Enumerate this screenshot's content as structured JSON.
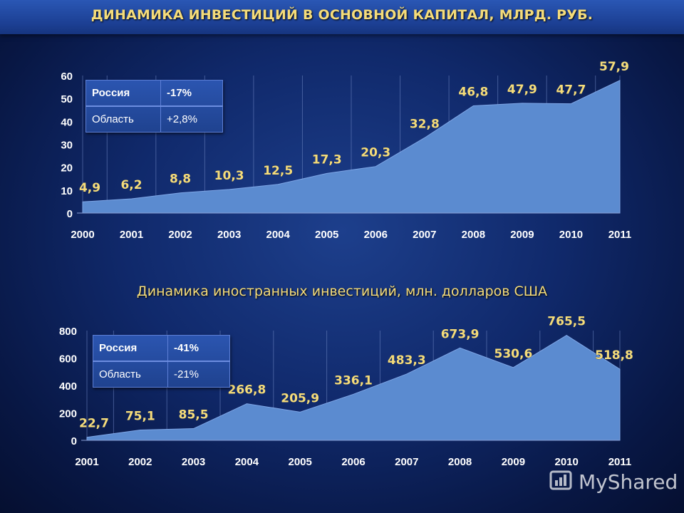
{
  "title": "ДИНАМИКА ИНВЕСТИЦИЙ В ОСНОВНОЙ КАПИТАЛ, МЛРД. РУБ.",
  "subtitle": "Динамика иностранных  инвестиций, млн. долларов США",
  "colors": {
    "area_fill": "#5b8bd0",
    "value_labels": "#f5dc7a",
    "axis_text": "#ffffff",
    "title_text": "#f5dc7a"
  },
  "legend1": {
    "rows": [
      {
        "label": "Россия",
        "value": "-17%"
      },
      {
        "label": "Область",
        "value": "+2,8%"
      }
    ]
  },
  "legend2": {
    "rows": [
      {
        "label": "Россия",
        "value": "-41%"
      },
      {
        "label": "Область",
        "value": "-21%"
      }
    ]
  },
  "chart_data": [
    {
      "type": "area",
      "title": "ДИНАМИКА ИНВЕСТИЦИЙ В ОСНОВНОЙ КАПИТАЛ, МЛРД. РУБ.",
      "categories": [
        "2000",
        "2001",
        "2002",
        "2003",
        "2004",
        "2005",
        "2006",
        "2007",
        "2008",
        "2009",
        "2010",
        "2011"
      ],
      "values": [
        4.9,
        6.2,
        8.8,
        10.3,
        12.5,
        17.3,
        20.3,
        32.8,
        46.8,
        47.9,
        47.7,
        57.9
      ],
      "data_labels": [
        "4,9",
        "6,2",
        "8,8",
        "10,3",
        "12,5",
        "17,3",
        "20,3",
        "32,8",
        "46,8",
        "47,9",
        "47,7",
        "57,9"
      ],
      "ylim": [
        0,
        60
      ],
      "yticks": [
        0,
        10,
        20,
        30,
        40,
        50,
        60
      ],
      "grid": "vertical",
      "legend": "none"
    },
    {
      "type": "area",
      "title": "Динамика иностранных  инвестиций, млн. долларов США",
      "categories": [
        "2001",
        "2002",
        "2003",
        "2004",
        "2005",
        "2006",
        "2007",
        "2008",
        "2009",
        "2010",
        "2011"
      ],
      "values": [
        22.7,
        75.1,
        85.5,
        266.8,
        205.9,
        336.1,
        483.3,
        673.9,
        530.6,
        765.5,
        518.8
      ],
      "data_labels": [
        "22,7",
        "75,1",
        "85,5",
        "266,8",
        "205,9",
        "336,1",
        "483,3",
        "673,9",
        "530,6",
        "765,5",
        "518,8"
      ],
      "ylim": [
        0,
        800
      ],
      "yticks": [
        0,
        200,
        400,
        600,
        800
      ],
      "grid": "vertical",
      "legend": "none"
    }
  ],
  "watermark": {
    "text": "MyShared",
    "icon": "bar-chart-logo-icon"
  }
}
